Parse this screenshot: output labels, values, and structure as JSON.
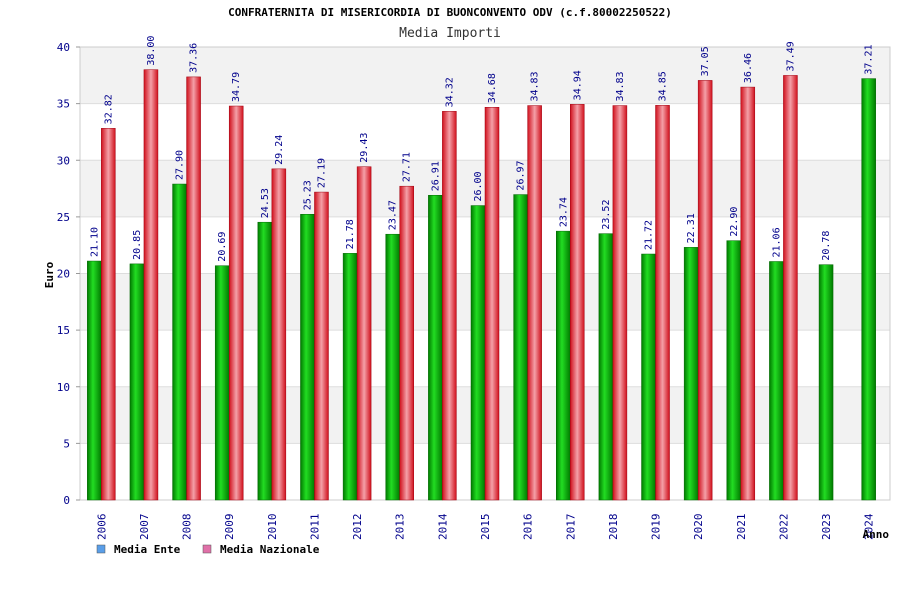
{
  "chart_data": {
    "type": "bar",
    "title": "CONFRATERNITA DI MISERICORDIA DI BUONCONVENTO ODV (c.f.80002250522)",
    "subtitle": "Media Importi",
    "xlabel": "Anno",
    "ylabel": "Euro",
    "ylim": [
      0,
      40
    ],
    "yticks": [
      0,
      5,
      10,
      15,
      20,
      25,
      30,
      35,
      40
    ],
    "grid": true,
    "legend_position": "bottom-left",
    "categories": [
      "2006",
      "2007",
      "2008",
      "2009",
      "2010",
      "2011",
      "2012",
      "2013",
      "2014",
      "2015",
      "2016",
      "2017",
      "2018",
      "2019",
      "2020",
      "2021",
      "2022",
      "2023",
      "2024"
    ],
    "series": [
      {
        "name": "Media Ente",
        "bar_color": "#00b000",
        "legend_color": "#5a9ee8",
        "values": [
          21.1,
          20.85,
          27.9,
          20.69,
          24.53,
          25.23,
          21.78,
          23.47,
          26.91,
          26.0,
          26.97,
          23.74,
          23.52,
          21.72,
          22.31,
          22.9,
          21.06,
          20.78,
          37.21
        ],
        "labels": [
          "21.10",
          "20.85",
          "27.90",
          "20.69",
          "24.53",
          "25.23",
          "21.78",
          "23.47",
          "26.91",
          "26.00",
          "26.97",
          "23.74",
          "23.52",
          "21.72",
          "22.31",
          "22.90",
          "21.06",
          "20.78",
          "37.21"
        ]
      },
      {
        "name": "Media Nazionale",
        "bar_color": "#e8202a",
        "legend_color": "#e070a8",
        "values": [
          32.82,
          38.0,
          37.36,
          34.79,
          29.24,
          27.19,
          29.43,
          27.71,
          34.32,
          34.68,
          34.83,
          34.94,
          34.83,
          34.85,
          37.05,
          36.46,
          37.49,
          null,
          null
        ],
        "labels": [
          "32.82",
          "38.00",
          "37.36",
          "34.79",
          "29.24",
          "27.19",
          "29.43",
          "27.71",
          "34.32",
          "34.68",
          "34.83",
          "34.94",
          "34.83",
          "34.85",
          "37.05",
          "36.46",
          "37.49",
          "",
          ""
        ]
      }
    ]
  }
}
